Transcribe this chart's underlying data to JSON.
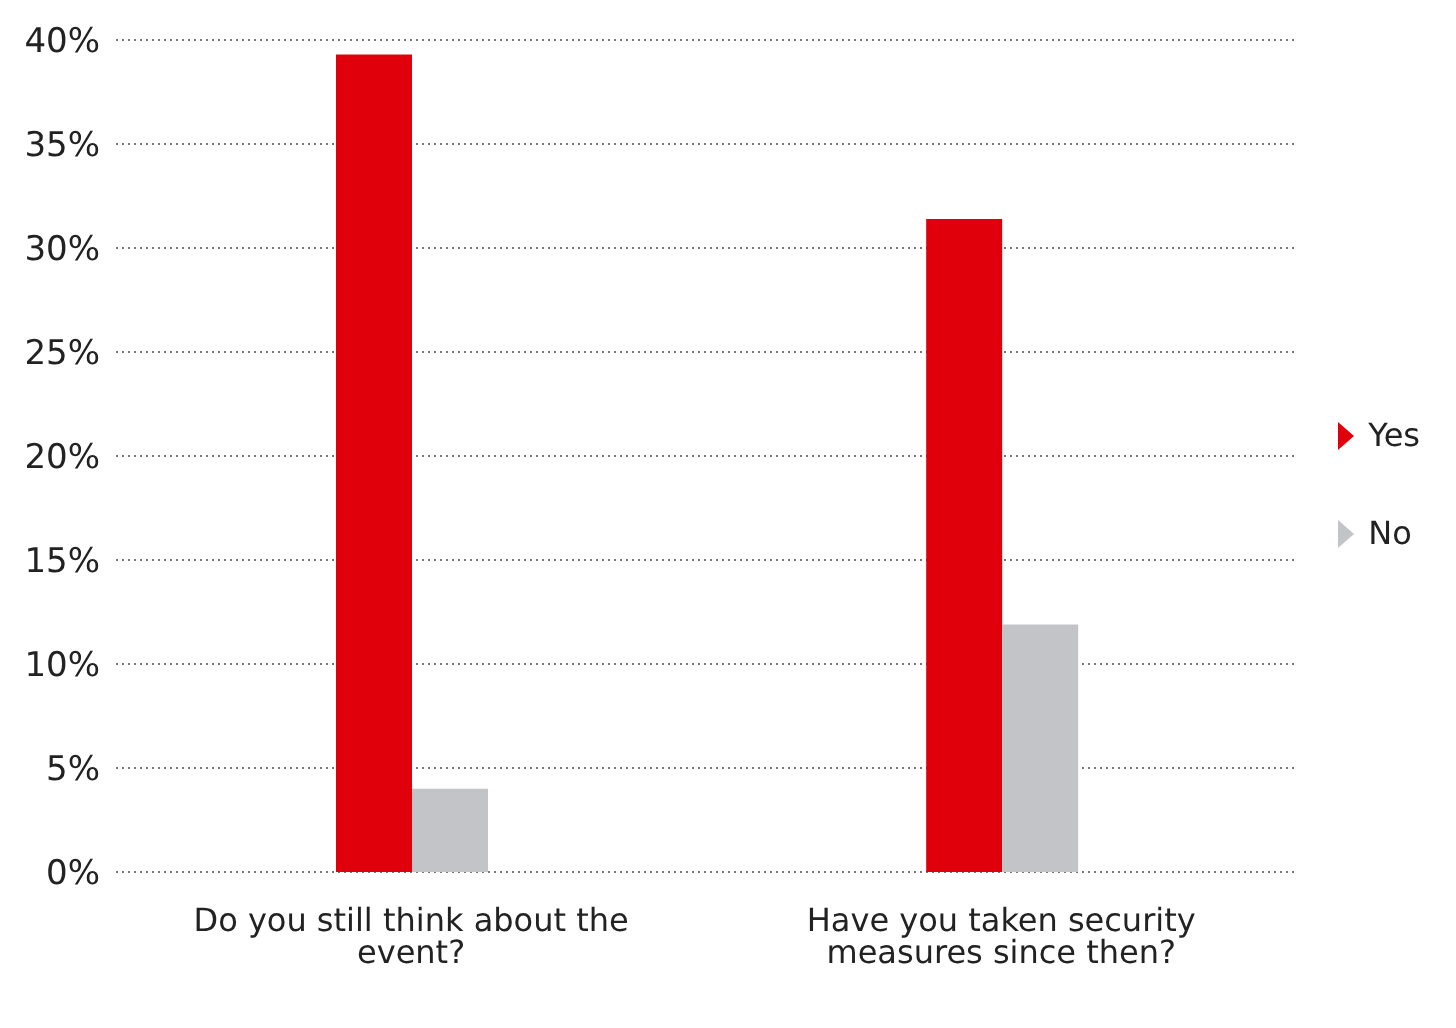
{
  "chart_data": {
    "type": "bar",
    "categories": [
      "Do you still think about the event?",
      "Have you taken security measures since then?"
    ],
    "series": [
      {
        "name": "Yes",
        "color": "#e0000b",
        "values": [
          39.3,
          31.4
        ]
      },
      {
        "name": "No",
        "color": "#c3c4c8",
        "values": [
          4.0,
          11.9
        ]
      }
    ],
    "ylim": [
      0,
      40
    ],
    "yticks": [
      {
        "value": 0,
        "label": "0%"
      },
      {
        "value": 5,
        "label": "5%"
      },
      {
        "value": 10,
        "label": "10%"
      },
      {
        "value": 15,
        "label": "15%"
      },
      {
        "value": 20,
        "label": "20%"
      },
      {
        "value": 25,
        "label": "25%"
      },
      {
        "value": 30,
        "label": "30%"
      },
      {
        "value": 35,
        "label": "35%"
      },
      {
        "value": 40,
        "label": "40%"
      }
    ],
    "grid": "y",
    "legend": "right"
  }
}
